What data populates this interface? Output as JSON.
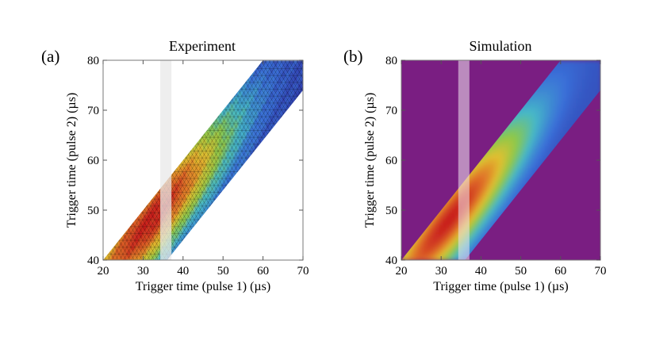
{
  "chart_data": [
    {
      "type": "heatmap",
      "panel_label": "(a)",
      "title": "Experiment",
      "xlabel": "Trigger time (pulse 1) (µs)",
      "ylabel": "Trigger time (pulse 2) (µs)",
      "xlim": [
        20,
        70
      ],
      "ylim": [
        40,
        80
      ],
      "xticks": [
        "20",
        "30",
        "40",
        "50",
        "60",
        "70"
      ],
      "yticks": [
        "40",
        "50",
        "60",
        "70",
        "80"
      ],
      "background": "#ffffff",
      "texture": "triangular-mesh",
      "band": {
        "lower_offset": [
          20,
          24
        ],
        "upper_offset": [
          20,
          20
        ],
        "note": "data defined between y = x + 20 (upper-left edge) and y = x + 4 (lower-right edge)"
      },
      "band_edges": {
        "upper_left": 20,
        "lower_right": 4
      },
      "highlight_strip": {
        "x_range": [
          34.3,
          37.1
        ],
        "color": "#e8e8e8",
        "opacity": 0.75
      },
      "peak": {
        "x": 30,
        "y": 50,
        "relative_intensity": 1.0
      }
    },
    {
      "type": "heatmap",
      "panel_label": "(b)",
      "title": "Simulation",
      "xlabel": "Trigger time (pulse 1) (µs)",
      "ylabel": "Trigger time (pulse 2) (µs)",
      "xlim": [
        20,
        70
      ],
      "ylim": [
        40,
        80
      ],
      "xticks": [
        "20",
        "30",
        "40",
        "50",
        "60",
        "70"
      ],
      "yticks": [
        "40",
        "50",
        "60",
        "70",
        "80"
      ],
      "background": "#7a1e82",
      "texture": "smooth",
      "band_edges": {
        "upper_left": 20,
        "lower_right": 4
      },
      "highlight_strip": {
        "x_range": [
          34.3,
          37.1
        ],
        "color": "#f0e6f0",
        "opacity": 0.55
      },
      "peak": {
        "x": 30,
        "y": 50,
        "relative_intensity": 1.0
      }
    }
  ],
  "colors": {
    "colormap": [
      "#2e2e9e",
      "#3a6fd8",
      "#46b8c8",
      "#8cc84a",
      "#e0c030",
      "#e07028",
      "#c81e1e"
    ]
  }
}
